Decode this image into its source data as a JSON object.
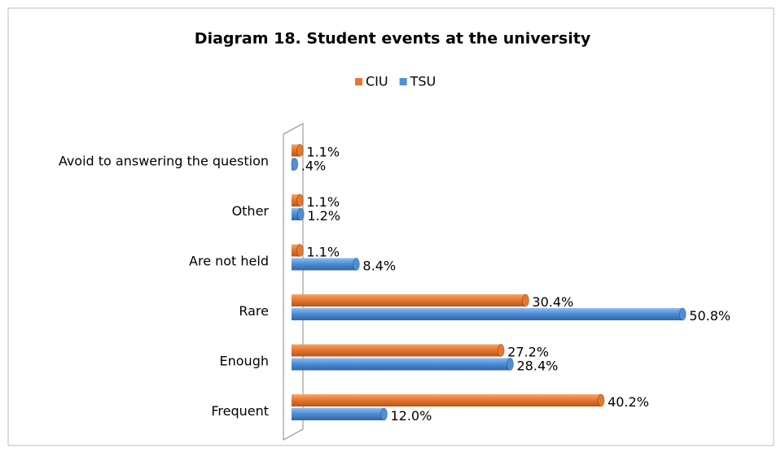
{
  "chart_data": {
    "type": "bar",
    "orientation": "horizontal",
    "title": "Diagram 18. Student events at the university",
    "categories": [
      "Avoid to answering the question",
      "Other",
      "Are not held",
      "Rare",
      "Enough",
      "Frequent"
    ],
    "series": [
      {
        "name": "CIU",
        "color": "#e8772e",
        "values": [
          1.1,
          1.1,
          1.1,
          30.4,
          27.2,
          40.2
        ],
        "value_labels": [
          "1.1%",
          "1.1%",
          "1.1%",
          "30.4%",
          "27.2%",
          "40.2%"
        ]
      },
      {
        "name": "TSU",
        "color": "#4f8fd8",
        "values": [
          0.4,
          1.2,
          8.4,
          50.8,
          28.4,
          12.0
        ],
        "value_labels": [
          ".4%",
          "1.2%",
          "8.4%",
          "50.8%",
          "28.4%",
          "12.0%"
        ]
      }
    ],
    "xlim": [
      0,
      55
    ],
    "legend": "top"
  }
}
